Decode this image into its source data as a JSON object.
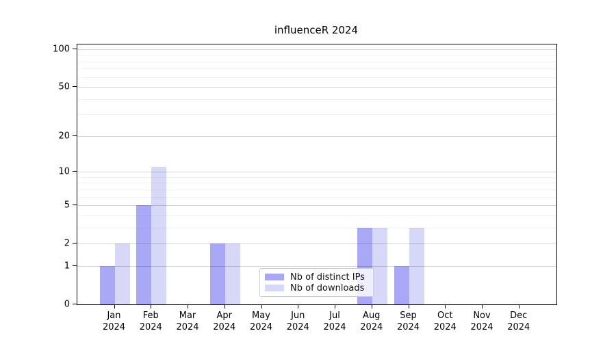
{
  "chart_data": {
    "type": "bar",
    "title": "influenceR 2024",
    "categories": [
      "Jan",
      "Feb",
      "Mar",
      "Apr",
      "May",
      "Jun",
      "Jul",
      "Aug",
      "Sep",
      "Oct",
      "Nov",
      "Dec"
    ],
    "x_year_line": "2024",
    "series": [
      {
        "name": "Nb of distinct IPs",
        "color": "#a8a8f7",
        "values": [
          1,
          5,
          0,
          2,
          0,
          0,
          0,
          3,
          1,
          0,
          0,
          0
        ]
      },
      {
        "name": "Nb of downloads",
        "color": "#d7d7f8",
        "values": [
          2,
          11,
          0,
          2,
          0,
          0,
          0,
          3,
          3,
          0,
          0,
          0
        ]
      }
    ],
    "xlabel": "",
    "ylabel": "",
    "y_scale": "log1p",
    "y_tick_values": [
      0,
      1,
      2,
      5,
      10,
      20,
      50,
      100
    ],
    "y_tick_labels": [
      "0",
      "1",
      "2",
      "5",
      "10",
      "20",
      "50",
      "100"
    ],
    "y_minor_gridline_values": [
      3,
      4,
      6,
      7,
      8,
      9,
      30,
      40,
      60,
      70,
      80,
      90
    ],
    "ylim": [
      0,
      109
    ],
    "grid": "horizontal",
    "legend_position": "lower-center"
  },
  "style": {
    "major_grid_color": "rgba(0,0,0,0.17)",
    "minor_grid_color": "rgba(0,0,0,0.055)",
    "spine_color": "#000000",
    "background": "#ffffff"
  }
}
